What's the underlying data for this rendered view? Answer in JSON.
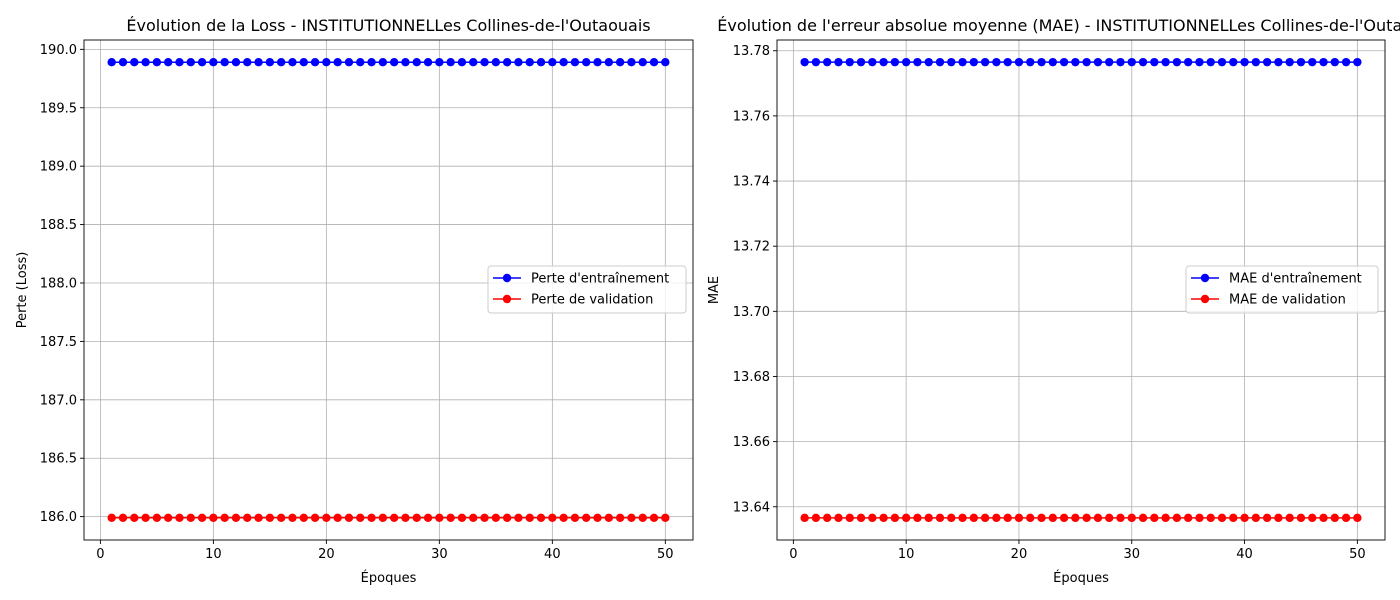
{
  "chart_data": [
    {
      "type": "line",
      "title": "Évolution de la Loss - INSTITUTIONNELLes Collines-de-l'Outaouais",
      "xlabel": "Époques",
      "ylabel": "Perte (Loss)",
      "xlim": [
        -1.45,
        52.45
      ],
      "ylim": [
        185.8,
        190.08
      ],
      "xticks": [
        0,
        10,
        20,
        30,
        40,
        50
      ],
      "xtick_labels": [
        "0",
        "10",
        "20",
        "30",
        "40",
        "50"
      ],
      "yticks": [
        186.0,
        186.5,
        187.0,
        187.5,
        188.0,
        188.5,
        189.0,
        189.5,
        190.0
      ],
      "ytick_labels": [
        "186.0",
        "186.5",
        "187.0",
        "187.5",
        "188.0",
        "188.5",
        "189.0",
        "189.5",
        "190.0"
      ],
      "grid": true,
      "legend_position": "center-right",
      "x": [
        1,
        2,
        3,
        4,
        5,
        6,
        7,
        8,
        9,
        10,
        11,
        12,
        13,
        14,
        15,
        16,
        17,
        18,
        19,
        20,
        21,
        22,
        23,
        24,
        25,
        26,
        27,
        28,
        29,
        30,
        31,
        32,
        33,
        34,
        35,
        36,
        37,
        38,
        39,
        40,
        41,
        42,
        43,
        44,
        45,
        46,
        47,
        48,
        49,
        50
      ],
      "series": [
        {
          "name": "Perte d'entraînement",
          "color": "#0000ff",
          "marker": "circle",
          "value": 189.89
        },
        {
          "name": "Perte de validation",
          "color": "#ff0000",
          "marker": "circle",
          "value": 185.99
        }
      ]
    },
    {
      "type": "line",
      "title": "Évolution de l'erreur absolue moyenne (MAE) - INSTITUTIONNELLes Collines-de-l'Outaouais",
      "xlabel": "Époques",
      "ylabel": "MAE",
      "xlim": [
        -1.45,
        52.45
      ],
      "ylim": [
        13.6298,
        13.7833
      ],
      "xticks": [
        0,
        10,
        20,
        30,
        40,
        50
      ],
      "xtick_labels": [
        "0",
        "10",
        "20",
        "30",
        "40",
        "50"
      ],
      "yticks": [
        13.64,
        13.66,
        13.68,
        13.7,
        13.72,
        13.74,
        13.76,
        13.78
      ],
      "ytick_labels": [
        "13.64",
        "13.66",
        "13.68",
        "13.70",
        "13.72",
        "13.74",
        "13.76",
        "13.78"
      ],
      "grid": true,
      "legend_position": "center-right",
      "x": [
        1,
        2,
        3,
        4,
        5,
        6,
        7,
        8,
        9,
        10,
        11,
        12,
        13,
        14,
        15,
        16,
        17,
        18,
        19,
        20,
        21,
        22,
        23,
        24,
        25,
        26,
        27,
        28,
        29,
        30,
        31,
        32,
        33,
        34,
        35,
        36,
        37,
        38,
        39,
        40,
        41,
        42,
        43,
        44,
        45,
        46,
        47,
        48,
        49,
        50
      ],
      "series": [
        {
          "name": "MAE d'entraînement",
          "color": "#0000ff",
          "marker": "circle",
          "value": 13.7765
        },
        {
          "name": "MAE de validation",
          "color": "#ff0000",
          "marker": "circle",
          "value": 13.6366
        }
      ]
    }
  ]
}
